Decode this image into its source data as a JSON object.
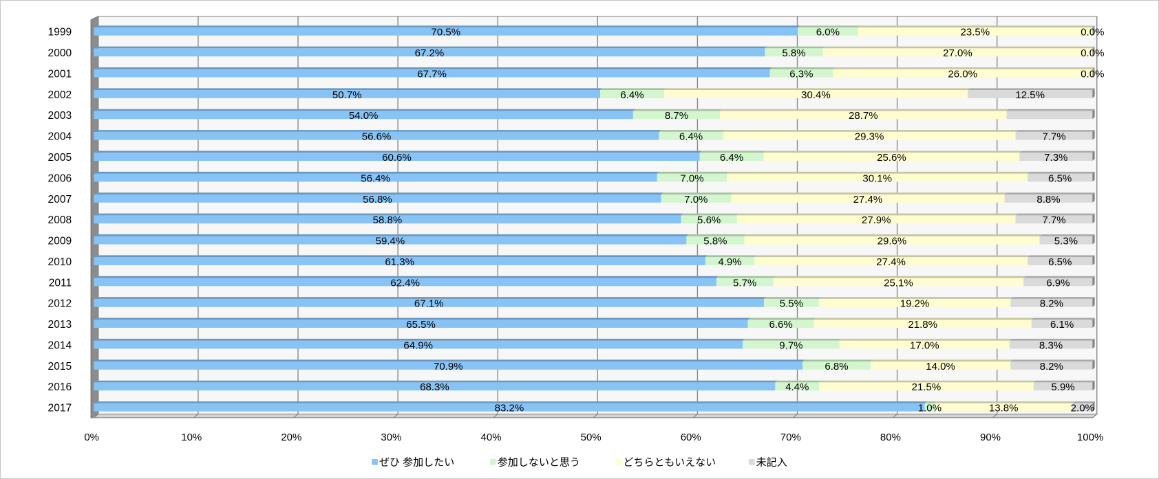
{
  "chart_data": {
    "type": "bar",
    "orientation": "horizontal",
    "stacked": true,
    "percent_stacked": true,
    "categories": [
      "1999",
      "2000",
      "2001",
      "2002",
      "2003",
      "2004",
      "2005",
      "2006",
      "2007",
      "2008",
      "2009",
      "2010",
      "2011",
      "2012",
      "2013",
      "2014",
      "2015",
      "2016",
      "2017"
    ],
    "xlim": [
      0,
      100
    ],
    "xticks": [
      "0%",
      "10%",
      "20%",
      "30%",
      "40%",
      "50%",
      "60%",
      "70%",
      "80%",
      "90%",
      "100%"
    ],
    "grid": true,
    "legend": "bottom",
    "series": [
      {
        "name": "ぜひ 参加したい",
        "color": "#88c3f5",
        "values": [
          70.5,
          67.2,
          67.7,
          50.7,
          54.0,
          56.6,
          60.6,
          56.4,
          56.8,
          58.8,
          59.4,
          61.3,
          62.4,
          67.1,
          65.5,
          64.9,
          70.9,
          68.3,
          83.2
        ],
        "labels": [
          "70.5%",
          "67.2%",
          "67.7%",
          "50.7%",
          "54.0%",
          "56.6%",
          "60.6%",
          "56.4%",
          "56.8%",
          "58.8%",
          "59.4%",
          "61.3%",
          "62.4%",
          "67.1%",
          "65.5%",
          "64.9%",
          "70.9%",
          "68.3%",
          "83.2%"
        ]
      },
      {
        "name": "参加しないと思う",
        "color": "#d3f6cf",
        "values": [
          6.0,
          5.8,
          6.3,
          6.4,
          8.7,
          6.4,
          6.4,
          7.0,
          7.0,
          5.6,
          5.8,
          4.9,
          5.7,
          5.5,
          6.6,
          9.7,
          6.8,
          4.4,
          1.0
        ],
        "labels": [
          "6.0%",
          "5.8%",
          "6.3%",
          "6.4%",
          "8.7%",
          "6.4%",
          "6.4%",
          "7.0%",
          "7.0%",
          "5.6%",
          "5.8%",
          "4.9%",
          "5.7%",
          "5.5%",
          "6.6%",
          "9.7%",
          "6.8%",
          "4.4%",
          "1.0%"
        ]
      },
      {
        "name": "どちらともいえない",
        "color": "#fdfdcf",
        "values": [
          23.5,
          27.0,
          26.0,
          30.4,
          28.7,
          29.3,
          25.6,
          30.1,
          27.4,
          27.9,
          29.6,
          27.4,
          25.1,
          19.2,
          21.8,
          17.0,
          14.0,
          21.5,
          13.8
        ],
        "labels": [
          "23.5%",
          "27.0%",
          "26.0%",
          "30.4%",
          "28.7%",
          "29.3%",
          "25.6%",
          "30.1%",
          "27.4%",
          "27.9%",
          "29.6%",
          "27.4%",
          "25.1%",
          "19.2%",
          "21.8%",
          "17.0%",
          "14.0%",
          "21.5%",
          "13.8%"
        ]
      },
      {
        "name": "未記入",
        "color": "#dadada",
        "values": [
          0.0,
          0.0,
          0.0,
          12.5,
          8.6,
          7.7,
          7.3,
          6.5,
          8.8,
          7.7,
          5.3,
          6.5,
          6.9,
          8.2,
          6.1,
          8.3,
          8.2,
          5.9,
          2.0
        ],
        "labels": [
          "0.0%",
          "0.0%",
          "0.0%",
          "12.5%",
          null,
          "7.7%",
          "7.3%",
          "6.5%",
          "8.8%",
          "7.7%",
          "5.3%",
          "6.5%",
          "6.9%",
          "8.2%",
          "6.1%",
          "8.3%",
          "8.2%",
          "5.9%",
          "2.0%"
        ]
      }
    ]
  }
}
